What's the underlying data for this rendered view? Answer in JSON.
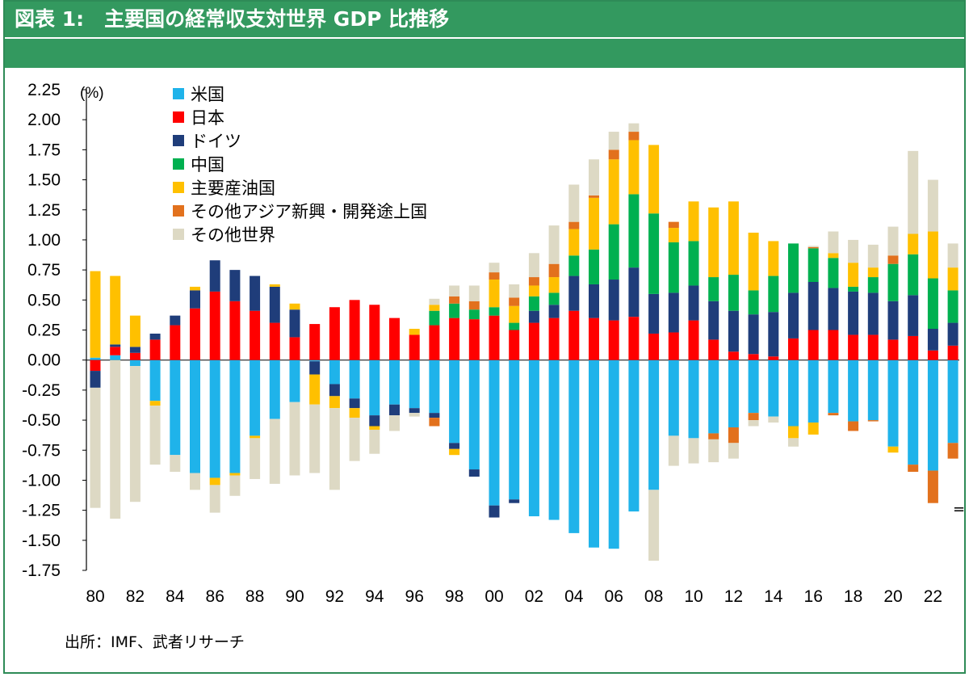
{
  "title": "図表 1:　主要国の経常収支対世界 GDP 比推移",
  "source": "出所：IMF、武者リサーチ",
  "break_mark": "=",
  "chart_data": {
    "type": "bar",
    "stacked": true,
    "unit_label": "(%)",
    "ylim": [
      -1.75,
      2.25
    ],
    "yticks": [
      "2.25",
      "2.00",
      "1.75",
      "1.50",
      "1.25",
      "1.00",
      "0.75",
      "0.50",
      "0.25",
      "0.00",
      "-0.25",
      "-0.50",
      "-0.75",
      "-1.00",
      "-1.25",
      "-1.50",
      "-1.75"
    ],
    "xticks": [
      "80",
      "82",
      "84",
      "86",
      "88",
      "90",
      "92",
      "94",
      "96",
      "98",
      "00",
      "02",
      "04",
      "06",
      "08",
      "10",
      "12",
      "14",
      "16",
      "18",
      "20",
      "22"
    ],
    "legend_position": "top-left",
    "years": [
      1980,
      1981,
      1982,
      1983,
      1984,
      1985,
      1986,
      1987,
      1988,
      1989,
      1990,
      1991,
      1992,
      1993,
      1994,
      1995,
      1996,
      1997,
      1998,
      1999,
      2000,
      2001,
      2002,
      2003,
      2004,
      2005,
      2006,
      2007,
      2008,
      2009,
      2010,
      2011,
      2012,
      2013,
      2014,
      2015,
      2016,
      2017,
      2018,
      2019,
      2020,
      2021,
      2022,
      2023
    ],
    "series": [
      {
        "name": "米国",
        "color": "#1fb3ea",
        "values": [
          0.02,
          0.04,
          -0.05,
          -0.34,
          -0.79,
          -0.94,
          -0.98,
          -0.94,
          -0.63,
          -0.49,
          -0.35,
          -0.01,
          -0.2,
          -0.32,
          -0.46,
          -0.37,
          -0.4,
          -0.44,
          -0.69,
          -0.91,
          -1.21,
          -1.16,
          -1.3,
          -1.33,
          -1.44,
          -1.56,
          -1.57,
          -1.26,
          -1.08,
          -0.63,
          -0.65,
          -0.61,
          -0.56,
          -0.44,
          -0.47,
          -0.55,
          -0.52,
          -0.44,
          -0.51,
          -0.5,
          -0.72,
          -0.87,
          -0.92,
          -0.69
        ]
      },
      {
        "name": "日本",
        "color": "#ff0000",
        "values": [
          -0.09,
          0.07,
          0.06,
          0.17,
          0.29,
          0.43,
          0.57,
          0.49,
          0.41,
          0.31,
          0.19,
          0.3,
          0.44,
          0.5,
          0.46,
          0.35,
          0.21,
          0.29,
          0.35,
          0.34,
          0.37,
          0.25,
          0.31,
          0.35,
          0.41,
          0.35,
          0.33,
          0.36,
          0.22,
          0.23,
          0.33,
          0.17,
          0.07,
          0.05,
          0.03,
          0.18,
          0.25,
          0.25,
          0.21,
          0.21,
          0.17,
          0.2,
          0.08,
          0.12
        ]
      },
      {
        "name": "ドイツ",
        "color": "#1f3d7a",
        "values": [
          -0.14,
          0.02,
          0.05,
          0.05,
          0.08,
          0.15,
          0.26,
          0.26,
          0.29,
          0.3,
          0.23,
          -0.11,
          -0.1,
          -0.08,
          -0.09,
          -0.09,
          -0.04,
          -0.04,
          -0.05,
          -0.06,
          -0.1,
          -0.03,
          0.1,
          0.11,
          0.29,
          0.28,
          0.34,
          0.41,
          0.33,
          0.33,
          0.29,
          0.32,
          0.34,
          0.33,
          0.37,
          0.38,
          0.4,
          0.35,
          0.36,
          0.35,
          0.32,
          0.34,
          0.18,
          0.19
        ]
      },
      {
        "name": "中国",
        "color": "#00b050",
        "values": [
          0,
          0,
          0,
          0,
          0,
          0,
          0,
          0,
          0,
          0,
          0,
          0,
          0,
          0,
          0,
          0,
          0,
          0.12,
          0.12,
          0.08,
          0.07,
          0.06,
          0.12,
          0.1,
          0.17,
          0.29,
          0.46,
          0.61,
          0.67,
          0.42,
          0.37,
          0.2,
          0.3,
          0.2,
          0.3,
          0.41,
          0.28,
          0.25,
          0.04,
          0.13,
          0.31,
          0.34,
          0.42,
          0.27
        ]
      },
      {
        "name": "主要産油国",
        "color": "#ffc000",
        "values": [
          0.72,
          0.57,
          0.26,
          -0.04,
          0,
          0.03,
          -0.06,
          -0.02,
          -0.02,
          0.02,
          0.05,
          -0.25,
          -0.1,
          -0.08,
          -0.03,
          0,
          0.05,
          0.05,
          -0.05,
          0,
          0.23,
          0.14,
          0.09,
          0.13,
          0.22,
          0.43,
          0.54,
          0.45,
          0.57,
          0.12,
          0.33,
          0.58,
          0.61,
          0.48,
          0.29,
          -0.1,
          -0.1,
          0.04,
          0.2,
          0.08,
          -0.05,
          0.17,
          0.39,
          0.19
        ]
      },
      {
        "name": "その他アジア新興・開発途上国",
        "color": "#e2711d",
        "values": [
          0,
          0,
          0,
          0,
          0,
          0,
          0,
          0,
          0,
          0,
          0,
          0,
          0,
          0,
          0,
          0,
          0,
          -0.07,
          0.06,
          0.07,
          0.06,
          0.07,
          0.07,
          0.11,
          0.06,
          0.02,
          0.08,
          0.07,
          0,
          0.05,
          0,
          -0.05,
          -0.13,
          -0.06,
          0,
          0,
          0.01,
          -0.02,
          -0.08,
          -0.01,
          0.07,
          -0.06,
          -0.27,
          -0.13
        ]
      },
      {
        "name": "その他世界",
        "color": "#ddd9c4",
        "values": [
          -1.0,
          -1.32,
          -1.13,
          -0.49,
          -0.14,
          -0.14,
          -0.23,
          -0.17,
          -0.34,
          -0.54,
          -0.61,
          -0.57,
          -0.68,
          -0.36,
          -0.2,
          -0.13,
          -0.03,
          0.05,
          0.09,
          0.13,
          0.08,
          0.11,
          0.2,
          0.32,
          0.31,
          0.3,
          0.15,
          0.07,
          -0.59,
          -0.25,
          -0.21,
          -0.19,
          -0.13,
          -0.05,
          -0.05,
          -0.07,
          0.01,
          0.18,
          0.19,
          0.19,
          0.24,
          0.69,
          0.43,
          0.2
        ]
      }
    ]
  }
}
